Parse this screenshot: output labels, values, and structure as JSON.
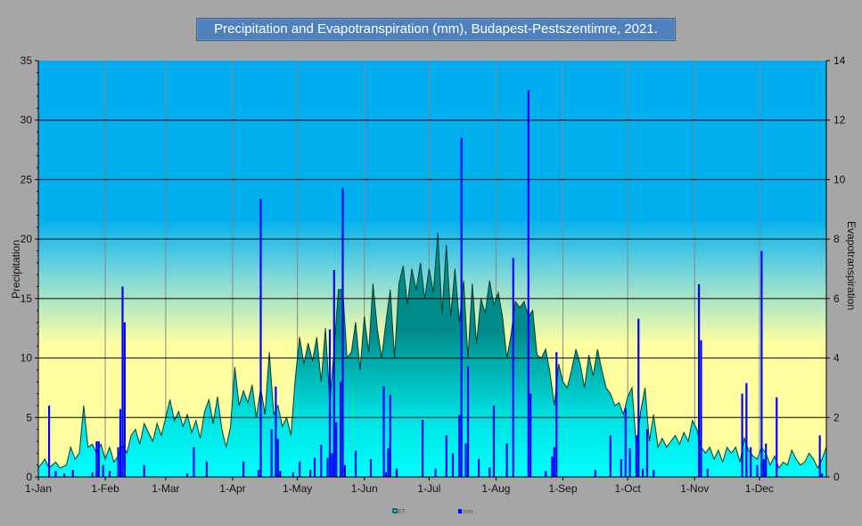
{
  "chart_data": {
    "type": "bar+area",
    "title": "Precipitation and Evapotranspiration (mm), Budapest-Pestszentimre, 2021.",
    "ylabel_left": "Precipitation",
    "ylabel_right": "Evapotranspiration",
    "ylim_left": [
      0,
      35
    ],
    "ylim_right": [
      0,
      14
    ],
    "yticks_left": [
      "0",
      "5",
      "10",
      "15",
      "20",
      "25",
      "30",
      "35"
    ],
    "yticks_right": [
      "0",
      "2",
      "4",
      "6",
      "8",
      "10",
      "12",
      "14"
    ],
    "xlim_days": [
      0,
      365
    ],
    "x_ticks": [
      {
        "label": "1-Jan",
        "day": 0
      },
      {
        "label": "1-Feb",
        "day": 31
      },
      {
        "label": "1-Mar",
        "day": 59
      },
      {
        "label": "1-Apr",
        "day": 90
      },
      {
        "label": "1-May",
        "day": 120
      },
      {
        "label": "1-Jun",
        "day": 151
      },
      {
        "label": "1-Jul",
        "day": 181
      },
      {
        "label": "1-Aug",
        "day": 212
      },
      {
        "label": "1-Sep",
        "day": 243
      },
      {
        "label": "1-Oct",
        "day": 273
      },
      {
        "label": "1-Nov",
        "day": 304
      },
      {
        "label": "1-Dec",
        "day": 334
      }
    ],
    "grid": true,
    "legend_position": "bottom",
    "colors": {
      "et_top": "#008b8b",
      "et_bottom": "#00ffff",
      "precip": "#0000ff",
      "sky": "#00b0f0",
      "sand": "#ffffa0"
    },
    "series": [
      {
        "name": "ET",
        "axis": "right",
        "kind": "area",
        "points": [
          [
            0,
            0.3
          ],
          [
            3,
            0.6
          ],
          [
            5,
            0.3
          ],
          [
            8,
            0.5
          ],
          [
            10,
            0.3
          ],
          [
            13,
            0.4
          ],
          [
            15,
            1.0
          ],
          [
            17,
            0.6
          ],
          [
            19,
            0.8
          ],
          [
            21,
            2.4
          ],
          [
            23,
            1.0
          ],
          [
            25,
            1.1
          ],
          [
            27,
            0.8
          ],
          [
            29,
            1.1
          ],
          [
            31,
            0.6
          ],
          [
            33,
            1.0
          ],
          [
            35,
            0.5
          ],
          [
            37,
            0.7
          ],
          [
            39,
            1.1
          ],
          [
            41,
            0.8
          ],
          [
            43,
            1.4
          ],
          [
            45,
            1.6
          ],
          [
            47,
            1.1
          ],
          [
            49,
            1.8
          ],
          [
            51,
            1.5
          ],
          [
            53,
            1.2
          ],
          [
            55,
            1.8
          ],
          [
            57,
            1.4
          ],
          [
            59,
            2.0
          ],
          [
            61,
            2.6
          ],
          [
            63,
            1.9
          ],
          [
            65,
            2.2
          ],
          [
            67,
            1.7
          ],
          [
            69,
            2.1
          ],
          [
            71,
            1.5
          ],
          [
            73,
            1.9
          ],
          [
            75,
            1.3
          ],
          [
            77,
            2.2
          ],
          [
            79,
            2.6
          ],
          [
            81,
            1.8
          ],
          [
            83,
            2.7
          ],
          [
            85,
            1.6
          ],
          [
            87,
            1.0
          ],
          [
            89,
            1.7
          ],
          [
            91,
            3.7
          ],
          [
            93,
            2.4
          ],
          [
            95,
            2.9
          ],
          [
            97,
            2.5
          ],
          [
            99,
            3.1
          ],
          [
            101,
            2.0
          ],
          [
            103,
            3.0
          ],
          [
            105,
            2.1
          ],
          [
            107,
            4.2
          ],
          [
            109,
            2.1
          ],
          [
            111,
            2.4
          ],
          [
            113,
            1.7
          ],
          [
            115,
            2.0
          ],
          [
            117,
            1.4
          ],
          [
            119,
            3.3
          ],
          [
            121,
            4.7
          ],
          [
            123,
            3.8
          ],
          [
            125,
            4.5
          ],
          [
            127,
            3.9
          ],
          [
            129,
            4.7
          ],
          [
            131,
            3.2
          ],
          [
            133,
            5.0
          ],
          [
            135,
            2.5
          ],
          [
            137,
            4.3
          ],
          [
            139,
            6.3
          ],
          [
            141,
            6.3
          ],
          [
            143,
            4.0
          ],
          [
            145,
            4.2
          ],
          [
            147,
            5.2
          ],
          [
            149,
            3.6
          ],
          [
            151,
            5.4
          ],
          [
            153,
            4.2
          ],
          [
            155,
            6.5
          ],
          [
            157,
            5.0
          ],
          [
            159,
            4.0
          ],
          [
            161,
            5.2
          ],
          [
            163,
            6.3
          ],
          [
            165,
            4.0
          ],
          [
            167,
            6.5
          ],
          [
            169,
            7.1
          ],
          [
            171,
            5.8
          ],
          [
            173,
            7.0
          ],
          [
            175,
            6.3
          ],
          [
            177,
            7.2
          ],
          [
            179,
            6.0
          ],
          [
            181,
            7.0
          ],
          [
            183,
            6.2
          ],
          [
            185,
            8.2
          ],
          [
            187,
            5.5
          ],
          [
            189,
            7.8
          ],
          [
            191,
            5.4
          ],
          [
            193,
            7.0
          ],
          [
            195,
            5.2
          ],
          [
            197,
            6.6
          ],
          [
            199,
            4.0
          ],
          [
            201,
            6.5
          ],
          [
            203,
            4.5
          ],
          [
            205,
            6.0
          ],
          [
            207,
            5.5
          ],
          [
            209,
            6.6
          ],
          [
            211,
            5.8
          ],
          [
            213,
            6.2
          ],
          [
            215,
            5.4
          ],
          [
            217,
            4.0
          ],
          [
            219,
            4.8
          ],
          [
            221,
            5.9
          ],
          [
            223,
            5.7
          ],
          [
            225,
            5.9
          ],
          [
            227,
            5.4
          ],
          [
            229,
            5.6
          ],
          [
            231,
            4.1
          ],
          [
            233,
            4.0
          ],
          [
            235,
            4.3
          ],
          [
            237,
            3.5
          ],
          [
            239,
            2.4
          ],
          [
            241,
            3.8
          ],
          [
            243,
            3.2
          ],
          [
            245,
            3.0
          ],
          [
            247,
            3.6
          ],
          [
            249,
            4.3
          ],
          [
            251,
            3.8
          ],
          [
            253,
            3.0
          ],
          [
            255,
            4.1
          ],
          [
            257,
            3.4
          ],
          [
            259,
            4.3
          ],
          [
            261,
            3.6
          ],
          [
            263,
            3.0
          ],
          [
            265,
            2.8
          ],
          [
            267,
            2.4
          ],
          [
            269,
            2.5
          ],
          [
            271,
            2.1
          ],
          [
            273,
            2.7
          ],
          [
            275,
            3.0
          ],
          [
            277,
            1.0
          ],
          [
            279,
            2.2
          ],
          [
            281,
            3.0
          ],
          [
            283,
            1.2
          ],
          [
            285,
            2.1
          ],
          [
            287,
            1.0
          ],
          [
            289,
            1.3
          ],
          [
            291,
            1.0
          ],
          [
            293,
            1.2
          ],
          [
            295,
            1.4
          ],
          [
            297,
            1.1
          ],
          [
            299,
            1.5
          ],
          [
            301,
            1.2
          ],
          [
            303,
            1.9
          ],
          [
            305,
            1.6
          ],
          [
            307,
            1.0
          ],
          [
            309,
            0.8
          ],
          [
            311,
            1.0
          ],
          [
            313,
            0.6
          ],
          [
            315,
            0.9
          ],
          [
            317,
            0.5
          ],
          [
            319,
            1.0
          ],
          [
            321,
            0.8
          ],
          [
            323,
            1.0
          ],
          [
            325,
            0.5
          ],
          [
            327,
            1.3
          ],
          [
            329,
            0.9
          ],
          [
            331,
            0.7
          ],
          [
            333,
            0.6
          ],
          [
            335,
            1.0
          ],
          [
            337,
            0.8
          ],
          [
            339,
            0.4
          ],
          [
            341,
            0.7
          ],
          [
            343,
            0.3
          ],
          [
            345,
            0.5
          ],
          [
            347,
            0.4
          ],
          [
            349,
            0.9
          ],
          [
            351,
            0.6
          ],
          [
            353,
            0.4
          ],
          [
            355,
            0.5
          ],
          [
            357,
            0.8
          ],
          [
            359,
            0.6
          ],
          [
            361,
            0.3
          ],
          [
            363,
            0.6
          ],
          [
            365,
            1.0
          ]
        ]
      },
      {
        "name": "mm",
        "axis": "left",
        "kind": "bar",
        "points": [
          [
            5,
            6.0
          ],
          [
            8,
            0.5
          ],
          [
            12,
            0.3
          ],
          [
            16,
            0.6
          ],
          [
            25,
            0.4
          ],
          [
            27,
            3.0
          ],
          [
            28,
            3.0
          ],
          [
            30,
            1.0
          ],
          [
            33,
            0.5
          ],
          [
            37,
            2.5
          ],
          [
            38,
            5.7
          ],
          [
            39,
            16.0
          ],
          [
            40,
            13.0
          ],
          [
            49,
            1.0
          ],
          [
            69,
            0.3
          ],
          [
            72,
            2.5
          ],
          [
            78,
            1.3
          ],
          [
            95,
            1.3
          ],
          [
            102,
            0.6
          ],
          [
            103,
            23.4
          ],
          [
            108,
            4.0
          ],
          [
            110,
            7.6
          ],
          [
            111,
            3.2
          ],
          [
            112,
            0.5
          ],
          [
            118,
            0.4
          ],
          [
            121,
            1.3
          ],
          [
            126,
            0.6
          ],
          [
            128,
            1.6
          ],
          [
            131,
            2.7
          ],
          [
            134,
            1.6
          ],
          [
            135,
            12.4
          ],
          [
            136,
            2.0
          ],
          [
            137,
            17.4
          ],
          [
            138,
            4.6
          ],
          [
            140,
            8.0
          ],
          [
            141,
            24.3
          ],
          [
            142,
            1.0
          ],
          [
            147,
            2.2
          ],
          [
            154,
            1.5
          ],
          [
            160,
            7.6
          ],
          [
            161,
            0.4
          ],
          [
            162,
            2.4
          ],
          [
            163,
            6.9
          ],
          [
            166,
            0.7
          ],
          [
            178,
            4.8
          ],
          [
            184,
            0.7
          ],
          [
            189,
            3.5
          ],
          [
            192,
            2.0
          ],
          [
            195,
            5.2
          ],
          [
            196,
            28.5
          ],
          [
            198,
            2.8
          ],
          [
            199,
            9.3
          ],
          [
            204,
            1.5
          ],
          [
            209,
            0.8
          ],
          [
            211,
            6.0
          ],
          [
            217,
            2.8
          ],
          [
            220,
            18.4
          ],
          [
            227,
            32.5
          ],
          [
            228,
            7.0
          ],
          [
            235,
            0.5
          ],
          [
            238,
            1.7
          ],
          [
            239,
            2.5
          ],
          [
            240,
            10.5
          ],
          [
            258,
            0.6
          ],
          [
            265,
            3.5
          ],
          [
            270,
            1.5
          ],
          [
            272,
            5.8
          ],
          [
            274,
            2.4
          ],
          [
            277,
            3.5
          ],
          [
            278,
            13.3
          ],
          [
            280,
            0.7
          ],
          [
            282,
            4.0
          ],
          [
            285,
            0.6
          ],
          [
            306,
            16.2
          ],
          [
            307,
            11.5
          ],
          [
            310,
            0.7
          ],
          [
            326,
            7.0
          ],
          [
            328,
            7.9
          ],
          [
            330,
            2.5
          ],
          [
            333,
            1.0
          ],
          [
            335,
            19.0
          ],
          [
            336,
            1.5
          ],
          [
            337,
            2.8
          ],
          [
            342,
            6.7
          ],
          [
            362,
            3.5
          ],
          [
            363,
            0.3
          ]
        ]
      }
    ],
    "legend": [
      {
        "label": "ET"
      },
      {
        "label": "mm"
      }
    ]
  }
}
